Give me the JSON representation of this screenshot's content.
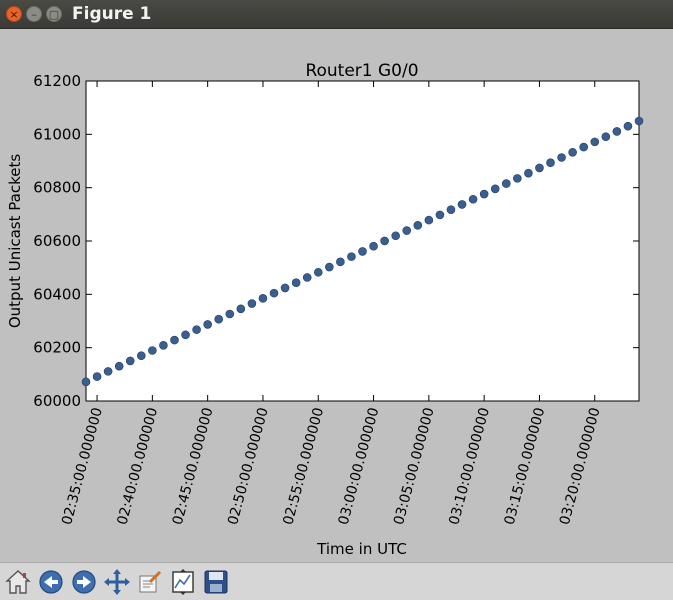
{
  "window": {
    "title": "Figure 1",
    "close_glyph": "×",
    "minimize_glyph": "–",
    "maximize_glyph": "▢"
  },
  "toolbar": {
    "tools": [
      {
        "name": "home-icon",
        "tip": "Reset original view"
      },
      {
        "name": "back-icon",
        "tip": "Back to previous view"
      },
      {
        "name": "forward-icon",
        "tip": "Forward to next view"
      },
      {
        "name": "pan-icon",
        "tip": "Pan axes"
      },
      {
        "name": "zoom-icon",
        "tip": "Zoom to rectangle"
      },
      {
        "name": "subplots-icon",
        "tip": "Configure subplots"
      },
      {
        "name": "save-icon",
        "tip": "Save the figure"
      }
    ]
  },
  "chart_data": {
    "type": "scatter",
    "title": "Router1 G0/0",
    "xlabel": "Time in UTC",
    "ylabel": "Output Unicast Packets",
    "x_start": "02:34:00",
    "x_end": "03:24:00",
    "xlim": [
      "02:34:00",
      "03:24:00"
    ],
    "ylim": [
      60000,
      61200
    ],
    "y_ticks": [
      "60000",
      "60200",
      "60400",
      "60600",
      "60800",
      "61000",
      "61200"
    ],
    "x_ticks": [
      {
        "time": "02:35:00",
        "label": "02:35:00.000000"
      },
      {
        "time": "02:40:00",
        "label": "02:40:00.000000"
      },
      {
        "time": "02:45:00",
        "label": "02:45:00.000000"
      },
      {
        "time": "02:50:00",
        "label": "02:50:00.000000"
      },
      {
        "time": "02:55:00",
        "label": "02:55:00.000000"
      },
      {
        "time": "03:00:00",
        "label": "03:00:00.000000"
      },
      {
        "time": "03:05:00",
        "label": "03:05:00.000000"
      },
      {
        "time": "03:10:00",
        "label": "03:10:00.000000"
      },
      {
        "time": "03:15:00",
        "label": "03:15:00.000000"
      },
      {
        "time": "03:20:00",
        "label": "03:20:00.000000"
      }
    ],
    "y_start": 60072,
    "y_end": 61050,
    "point_count": 51,
    "point_color": "#3a5f8f",
    "grid": false
  }
}
